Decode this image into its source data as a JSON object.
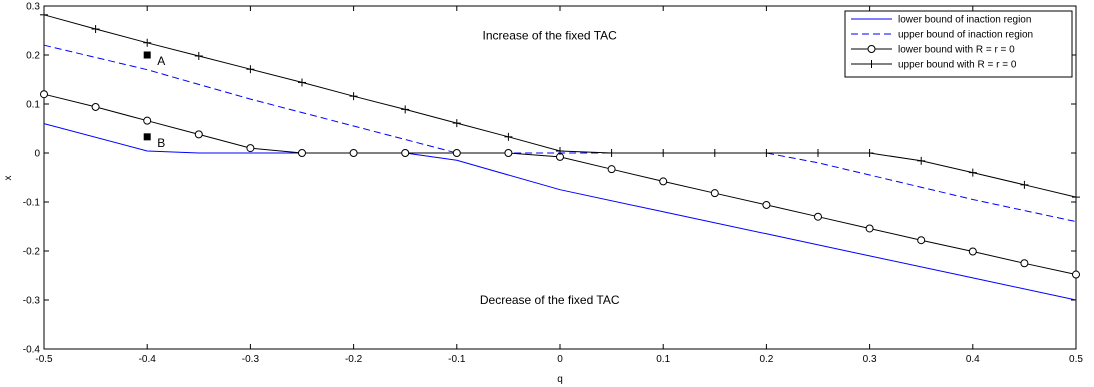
{
  "chart_data": {
    "type": "line",
    "title": "",
    "xlabel": "q",
    "ylabel": "x",
    "xlim": [
      -0.5,
      0.5
    ],
    "ylim": [
      -0.4,
      0.3
    ],
    "xticks": [
      -0.5,
      -0.4,
      -0.3,
      -0.2,
      -0.1,
      0,
      0.1,
      0.2,
      0.3,
      0.4,
      0.5
    ],
    "xtick_labels": [
      "-0.5",
      "-0.4",
      "-0.3",
      "-0.2",
      "-0.1",
      "0",
      "0.1",
      "0.2",
      "0.3",
      "0.4",
      "0.5"
    ],
    "yticks": [
      -0.4,
      -0.3,
      -0.2,
      -0.1,
      0,
      0.1,
      0.2,
      0.3
    ],
    "ytick_labels": [
      "-0.4",
      "-0.3",
      "-0.2",
      "-0.1",
      "0",
      "0.1",
      "0.2",
      "0.3"
    ],
    "grid": false,
    "legend_position": "top-right",
    "series": [
      {
        "name": "lower bound of inaction region",
        "color": "#0000ff",
        "style": "solid",
        "marker": "none",
        "x": [
          -0.5,
          -0.4,
          -0.35,
          -0.25,
          -0.15,
          -0.1,
          0,
          0.1,
          0.2,
          0.3,
          0.4,
          0.5
        ],
        "y": [
          0.06,
          0.004,
          0,
          0,
          0,
          -0.015,
          -0.075,
          -0.12,
          -0.165,
          -0.21,
          -0.255,
          -0.3
        ]
      },
      {
        "name": "upper bound of inaction region",
        "color": "#0000ff",
        "style": "dashed",
        "marker": "none",
        "x": [
          -0.5,
          -0.4,
          -0.3,
          -0.2,
          -0.1,
          -0.06,
          0,
          0.04,
          0.2,
          0.25,
          0.3,
          0.4,
          0.5
        ],
        "y": [
          0.22,
          0.17,
          0.11,
          0.055,
          0,
          0,
          0,
          0,
          0,
          -0.02,
          -0.045,
          -0.095,
          -0.14
        ]
      },
      {
        "name": "lower bound with R = r = 0",
        "color": "#000000",
        "style": "solid",
        "marker": "circle",
        "x": [
          -0.5,
          -0.45,
          -0.4,
          -0.35,
          -0.3,
          -0.25,
          -0.2,
          -0.15,
          -0.1,
          -0.05,
          0,
          0.05,
          0.1,
          0.15,
          0.2,
          0.25,
          0.3,
          0.35,
          0.4,
          0.45,
          0.5
        ],
        "y": [
          0.12,
          0.094,
          0.066,
          0.038,
          0.01,
          0,
          0,
          0,
          0,
          0,
          -0.008,
          -0.033,
          -0.058,
          -0.082,
          -0.106,
          -0.13,
          -0.154,
          -0.178,
          -0.201,
          -0.225,
          -0.248
        ]
      },
      {
        "name": "upper bound with R = r = 0",
        "color": "#000000",
        "style": "solid",
        "marker": "plus",
        "x": [
          -0.5,
          -0.45,
          -0.4,
          -0.35,
          -0.3,
          -0.25,
          -0.2,
          -0.15,
          -0.1,
          -0.05,
          0,
          0.05,
          0.1,
          0.15,
          0.2,
          0.25,
          0.3,
          0.35,
          0.4,
          0.45,
          0.5
        ],
        "y": [
          0.282,
          0.253,
          0.225,
          0.198,
          0.171,
          0.144,
          0.116,
          0.089,
          0.061,
          0.033,
          0.004,
          0,
          0,
          0,
          0,
          0,
          0,
          -0.016,
          -0.04,
          -0.065,
          -0.09
        ]
      }
    ],
    "points": [
      {
        "label": "A",
        "x": -0.4,
        "y": 0.2
      },
      {
        "label": "B",
        "x": -0.4,
        "y": 0.033
      }
    ],
    "annotations": [
      {
        "text": "Increase of the fixed TAC",
        "x": -0.01,
        "y": 0.24
      },
      {
        "text": "Decrease of the fixed TAC",
        "x": -0.01,
        "y": -0.3
      }
    ]
  }
}
